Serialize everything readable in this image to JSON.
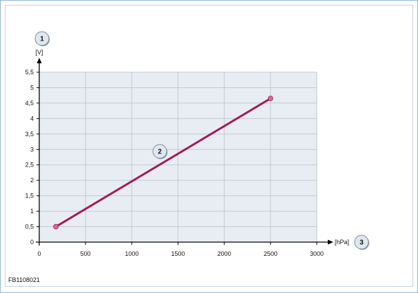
{
  "figure_code": "FB1108021",
  "callouts": {
    "y_axis": "1",
    "curve": "2",
    "x_axis": "3"
  },
  "chart_data": {
    "type": "line",
    "xlabel": "[hPa]",
    "ylabel": "[V]",
    "xlim": [
      0,
      3000
    ],
    "ylim": [
      0,
      5.5
    ],
    "x_ticks": [
      0,
      500,
      1000,
      1500,
      2000,
      2500,
      3000
    ],
    "x_tick_labels": [
      "0",
      "500",
      "1000",
      "1500",
      "2000",
      "2500",
      "3000"
    ],
    "y_ticks": [
      0,
      0.5,
      1,
      1.5,
      2,
      2.5,
      3,
      3.5,
      4,
      4.5,
      5,
      5.5
    ],
    "y_tick_labels": [
      "0",
      "0,5",
      "1",
      "1,5",
      "2",
      "2,5",
      "3",
      "3,5",
      "4",
      "4,5",
      "5",
      "5,5"
    ],
    "grid": true,
    "series": [
      {
        "x": [
          180,
          2500
        ],
        "y": [
          0.5,
          4.65
        ]
      }
    ],
    "colors": {
      "line": "#a3195b",
      "marker": "#d26d95",
      "grid": "#bfc9d4",
      "plot_bg": "#e8edf3",
      "axis": "#000000"
    }
  }
}
